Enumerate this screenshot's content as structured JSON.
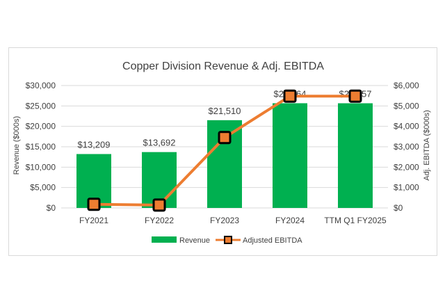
{
  "chart_data": {
    "type": "bar+line",
    "title": "Copper Division Revenue & Adj. EBITDA",
    "categories": [
      "FY2021",
      "FY2022",
      "FY2023",
      "FY2024",
      "TTM Q1 FY2025"
    ],
    "series": [
      {
        "name": "Revenue",
        "type": "bar",
        "axis": "left",
        "color": "#00b050",
        "values": [
          13209,
          13692,
          21510,
          25664,
          25657
        ],
        "labels": [
          "$13,209",
          "$13,692",
          "$21,510",
          "$25,664",
          "$25,657"
        ]
      },
      {
        "name": "Adjusted EBITDA",
        "type": "line",
        "axis": "right",
        "color": "#ed7d31",
        "values": [
          180,
          140,
          3450,
          5480,
          5480
        ]
      }
    ],
    "ylabel": "Revenue ($000s)",
    "y2label": "Adj. EBITDA ($000s)",
    "ylim": [
      0,
      30000
    ],
    "y2lim": [
      0,
      6000
    ],
    "yticks": [
      "$0",
      "$5,000",
      "$10,000",
      "$15,000",
      "$20,000",
      "$25,000",
      "$30,000"
    ],
    "y2ticks": [
      "$0",
      "$1,000",
      "$2,000",
      "$3,000",
      "$4,000",
      "$5,000",
      "$6,000"
    ],
    "grid": true,
    "legend": "bottom"
  }
}
